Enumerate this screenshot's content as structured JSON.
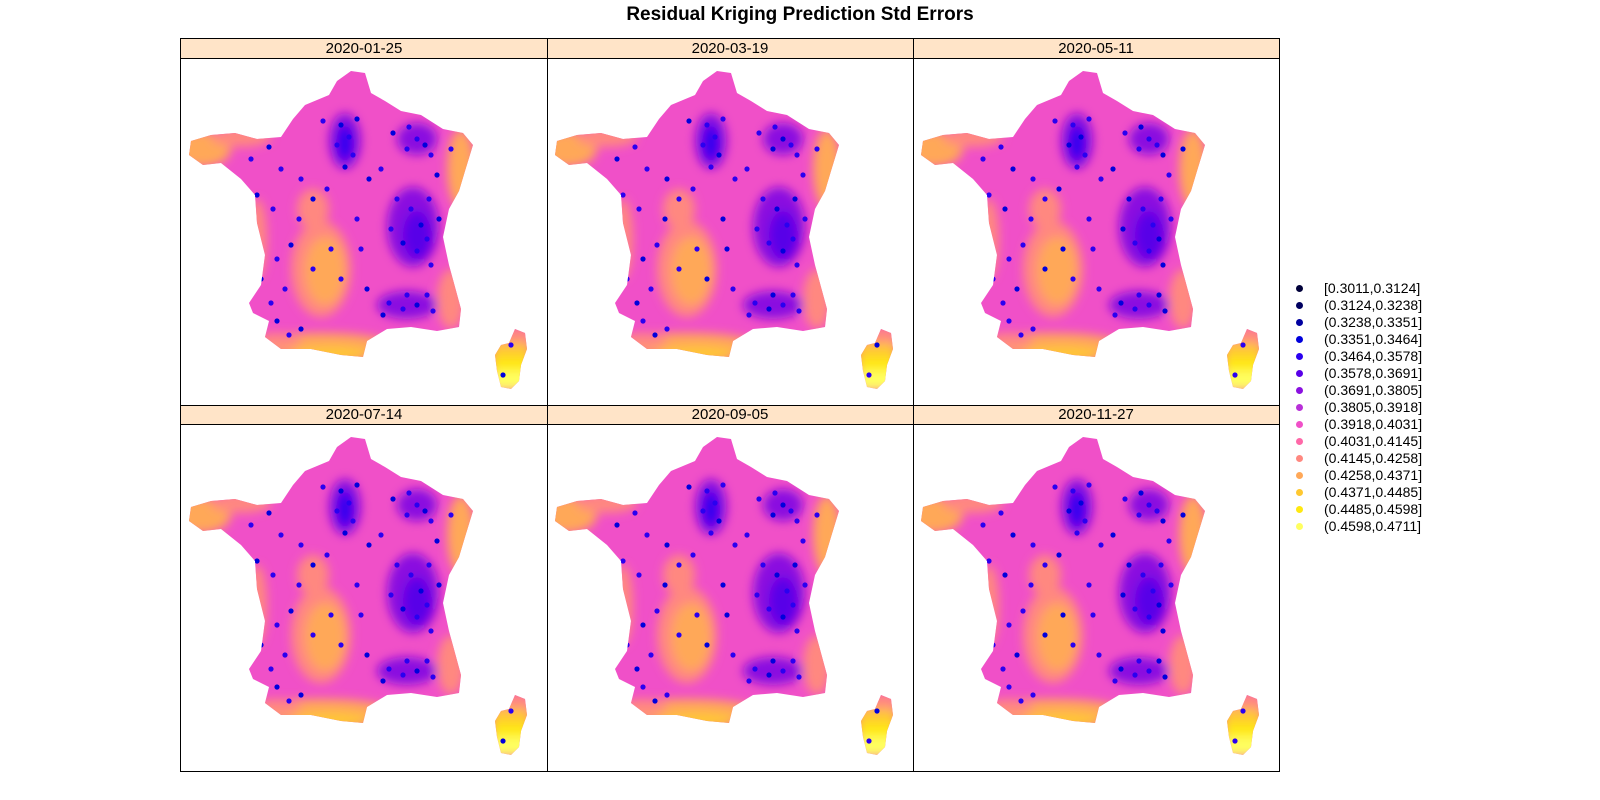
{
  "title": "Residual Kriging Prediction Std Errors",
  "panels": [
    {
      "label": "2020-01-25"
    },
    {
      "label": "2020-03-19"
    },
    {
      "label": "2020-05-11"
    },
    {
      "label": "2020-07-14"
    },
    {
      "label": "2020-09-05"
    },
    {
      "label": "2020-11-27"
    }
  ],
  "legend": {
    "items": [
      {
        "label": "[0.3011,0.3124]",
        "color": "#00003a"
      },
      {
        "label": "(0.3124,0.3238]",
        "color": "#000060"
      },
      {
        "label": "(0.3238,0.3351]",
        "color": "#0000a0"
      },
      {
        "label": "(0.3351,0.3464]",
        "color": "#0000dc"
      },
      {
        "label": "(0.3464,0.3578]",
        "color": "#2a00f0"
      },
      {
        "label": "(0.3578,0.3691]",
        "color": "#5800e8"
      },
      {
        "label": "(0.3691,0.3805]",
        "color": "#8a10e0"
      },
      {
        "label": "(0.3805,0.3918]",
        "color": "#b830d8"
      },
      {
        "label": "(0.3918,0.4031]",
        "color": "#f050c8"
      },
      {
        "label": "(0.4031,0.4145]",
        "color": "#ff68a8"
      },
      {
        "label": "(0.4145,0.4258]",
        "color": "#ff8880"
      },
      {
        "label": "(0.4258,0.4371]",
        "color": "#ffa858"
      },
      {
        "label": "(0.4371,0.4485]",
        "color": "#ffc830"
      },
      {
        "label": "(0.4485,0.4598]",
        "color": "#ffe810"
      },
      {
        "label": "(0.4598,0.4711]",
        "color": "#ffff60"
      }
    ]
  }
}
